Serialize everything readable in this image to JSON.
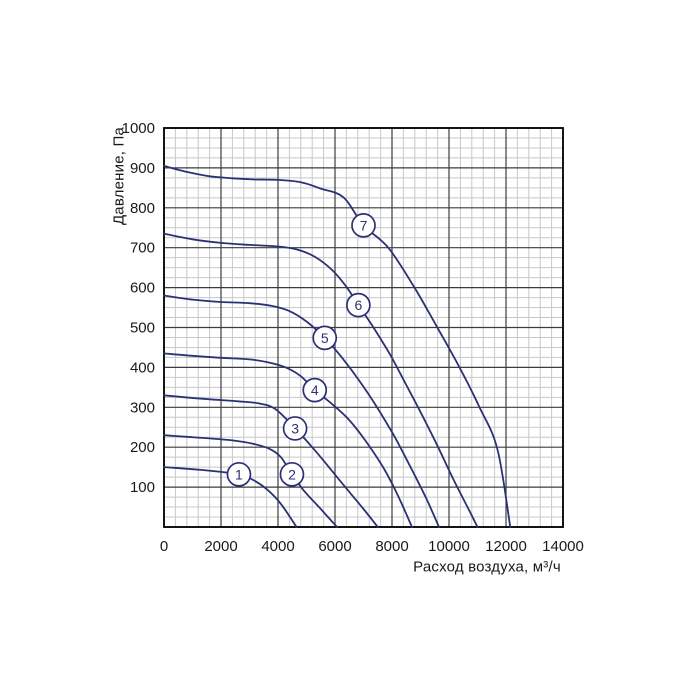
{
  "chart_data": {
    "type": "line",
    "title": "",
    "xlabel": "Расход воздуха, м³/ч",
    "ylabel": "Давление, Па",
    "xlim": [
      0,
      14000
    ],
    "ylim": [
      0,
      1000
    ],
    "x_major_step": 2000,
    "x_minor_step": 400,
    "y_major_step": 100,
    "y_minor_step": 25,
    "grid": "on",
    "legend_position": "none",
    "x_tick_labels": [
      "0",
      "2000",
      "4000",
      "6000",
      "8000",
      "10000",
      "12000",
      "14000"
    ],
    "y_tick_labels": [
      "100",
      "200",
      "300",
      "400",
      "500",
      "600",
      "700",
      "800",
      "900",
      "1000"
    ],
    "colors": {
      "curve": "#2b3274",
      "grid_major": "#3c3c3c",
      "grid_minor": "#c8c8c8",
      "plot_border": "#000000",
      "tick_text": "#1a1a1a",
      "marker_fill": "#ffffff",
      "marker_stroke": "#2b3274",
      "marker_text": "#2b3274",
      "background": "#ffffff"
    },
    "series": [
      {
        "name": "1",
        "marker_at": [
          2630,
          132
        ],
        "points": [
          [
            0,
            150
          ],
          [
            600,
            147
          ],
          [
            1300,
            143
          ],
          [
            2000,
            138
          ],
          [
            2630,
            132
          ],
          [
            3100,
            119
          ],
          [
            3600,
            95
          ],
          [
            4100,
            58
          ],
          [
            4650,
            0
          ]
        ]
      },
      {
        "name": "2",
        "marker_at": [
          4490,
          132
        ],
        "points": [
          [
            0,
            230
          ],
          [
            800,
            226
          ],
          [
            1600,
            222
          ],
          [
            2400,
            217
          ],
          [
            3100,
            209
          ],
          [
            3700,
            196
          ],
          [
            4100,
            175
          ],
          [
            4490,
            132
          ],
          [
            4900,
            92
          ],
          [
            5500,
            45
          ],
          [
            6070,
            0
          ]
        ]
      },
      {
        "name": "3",
        "marker_at": [
          4600,
          247
        ],
        "points": [
          [
            0,
            330
          ],
          [
            900,
            324
          ],
          [
            1800,
            319
          ],
          [
            2600,
            315
          ],
          [
            3300,
            310
          ],
          [
            3900,
            296
          ],
          [
            4600,
            247
          ],
          [
            5300,
            192
          ],
          [
            5900,
            140
          ],
          [
            6500,
            88
          ],
          [
            7000,
            45
          ],
          [
            7500,
            0
          ]
        ]
      },
      {
        "name": "4",
        "marker_at": [
          5290,
          343
        ],
        "points": [
          [
            0,
            435
          ],
          [
            1000,
            429
          ],
          [
            2000,
            424
          ],
          [
            3000,
            420
          ],
          [
            3700,
            412
          ],
          [
            4300,
            399
          ],
          [
            4800,
            378
          ],
          [
            5290,
            343
          ],
          [
            5900,
            308
          ],
          [
            6500,
            268
          ],
          [
            7100,
            213
          ],
          [
            7700,
            148
          ],
          [
            8200,
            80
          ],
          [
            8700,
            0
          ]
        ]
      },
      {
        "name": "5",
        "marker_at": [
          5640,
          474
        ],
        "points": [
          [
            0,
            580
          ],
          [
            1000,
            570
          ],
          [
            2000,
            564
          ],
          [
            3000,
            561
          ],
          [
            3800,
            554
          ],
          [
            4400,
            541
          ],
          [
            5000,
            515
          ],
          [
            5640,
            474
          ],
          [
            6250,
            424
          ],
          [
            6900,
            362
          ],
          [
            7500,
            297
          ],
          [
            8100,
            225
          ],
          [
            8700,
            143
          ],
          [
            9200,
            72
          ],
          [
            9650,
            0
          ]
        ]
      },
      {
        "name": "6",
        "marker_at": [
          6820,
          556
        ],
        "points": [
          [
            0,
            735
          ],
          [
            1000,
            721
          ],
          [
            2000,
            712
          ],
          [
            3000,
            707
          ],
          [
            4000,
            703
          ],
          [
            4700,
            695
          ],
          [
            5300,
            677
          ],
          [
            5900,
            644
          ],
          [
            6400,
            602
          ],
          [
            6820,
            556
          ],
          [
            7350,
            500
          ],
          [
            7950,
            430
          ],
          [
            8500,
            356
          ],
          [
            8950,
            295
          ],
          [
            9550,
            210
          ],
          [
            10150,
            120
          ],
          [
            10650,
            50
          ],
          [
            11000,
            0
          ]
        ]
      },
      {
        "name": "7",
        "marker_at": [
          7000,
          756
        ],
        "points": [
          [
            0,
            905
          ],
          [
            800,
            890
          ],
          [
            1600,
            879
          ],
          [
            2400,
            874
          ],
          [
            3200,
            871
          ],
          [
            4000,
            870
          ],
          [
            4800,
            864
          ],
          [
            5500,
            848
          ],
          [
            6300,
            826
          ],
          [
            7000,
            756
          ],
          [
            7870,
            700
          ],
          [
            8790,
            600
          ],
          [
            9590,
            500
          ],
          [
            10370,
            400
          ],
          [
            11070,
            300
          ],
          [
            11700,
            195
          ],
          [
            12150,
            0
          ]
        ]
      }
    ]
  }
}
